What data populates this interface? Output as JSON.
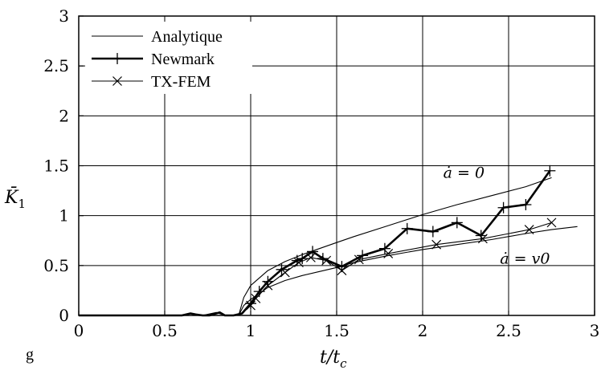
{
  "chart_data": {
    "type": "line",
    "xlabel": "t/t_c",
    "ylabel": "K̄1",
    "xlim": [
      0,
      3
    ],
    "ylim": [
      0,
      3
    ],
    "xticks": [
      "0",
      "0.5",
      "1",
      "1.5",
      "2",
      "2.5",
      "3"
    ],
    "yticks": [
      "0",
      "0.5",
      "1",
      "1.5",
      "2",
      "2.5",
      "3"
    ],
    "grid": true,
    "legend_position": "top-left",
    "corner_label": "g",
    "annotations": [
      {
        "text": "ȧ = 0",
        "x": 2.12,
        "y": 1.38
      },
      {
        "text": "ȧ = v0",
        "x": 2.45,
        "y": 0.52
      }
    ],
    "series": [
      {
        "name": "Analytique",
        "style": "thin",
        "marker": "none",
        "x": [
          0.93,
          0.96,
          1.0,
          1.1,
          1.2,
          1.3,
          1.4,
          1.5,
          1.6,
          1.8,
          2.0,
          2.2,
          2.4,
          2.6,
          2.75
        ],
        "y": [
          0,
          0.18,
          0.3,
          0.45,
          0.54,
          0.61,
          0.67,
          0.73,
          0.79,
          0.9,
          1.01,
          1.11,
          1.2,
          1.29,
          1.38
        ]
      },
      {
        "name": "Analytique",
        "style": "thin",
        "marker": "none",
        "x": [
          0.93,
          0.96,
          1.0,
          1.1,
          1.2,
          1.3,
          1.4,
          1.5,
          1.6,
          1.8,
          2.0,
          2.2,
          2.4,
          2.6,
          2.75,
          2.9
        ],
        "y": [
          0,
          0.1,
          0.16,
          0.28,
          0.35,
          0.4,
          0.44,
          0.48,
          0.53,
          0.6,
          0.66,
          0.71,
          0.76,
          0.82,
          0.86,
          0.89
        ]
      },
      {
        "name": "Newmark",
        "style": "thick",
        "marker": "plus",
        "x": [
          0,
          0.6,
          0.65,
          0.68,
          0.72,
          0.76,
          0.8,
          0.82,
          0.85,
          0.9,
          0.95,
          1.0,
          1.05,
          1.1,
          1.18,
          1.27,
          1.3,
          1.36,
          1.42,
          1.53,
          1.65,
          1.78,
          1.91,
          2.06,
          2.2,
          2.34,
          2.47,
          2.6,
          2.74
        ],
        "y": [
          0,
          0,
          0.02,
          0.01,
          0,
          0,
          0.02,
          0.03,
          0,
          0,
          0.02,
          0.12,
          0.24,
          0.34,
          0.46,
          0.55,
          0.57,
          0.64,
          0.57,
          0.49,
          0.6,
          0.67,
          0.87,
          0.84,
          0.93,
          0.8,
          1.08,
          1.11,
          1.45
        ]
      },
      {
        "name": "TX-FEM",
        "style": "thin",
        "marker": "cross",
        "x": [
          0,
          0.6,
          0.65,
          0.68,
          0.72,
          0.8,
          0.85,
          0.93,
          1.0,
          1.03,
          1.1,
          1.2,
          1.28,
          1.35,
          1.44,
          1.53,
          1.63,
          1.8,
          2.08,
          2.35,
          2.62,
          2.75
        ],
        "y": [
          0,
          0,
          0.02,
          0.01,
          0,
          0.03,
          0,
          0,
          0.1,
          0.17,
          0.3,
          0.43,
          0.53,
          0.58,
          0.55,
          0.45,
          0.56,
          0.62,
          0.71,
          0.77,
          0.86,
          0.93
        ]
      }
    ]
  }
}
